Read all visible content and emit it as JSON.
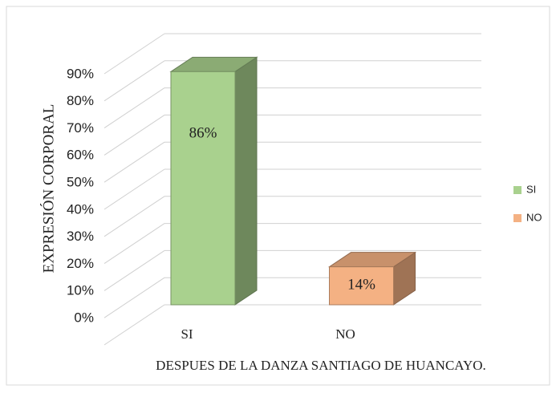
{
  "chart_data": {
    "type": "bar3d",
    "x_label": "DESPUES DE LA DANZA SANTIAGO DE HUANCAYO.",
    "y_label": "EXPRESIÓN CORPORAL",
    "categories": [
      "SI",
      "NO"
    ],
    "series": [
      {
        "name": "SI",
        "color": "#a9d18e",
        "values": [
          86,
          null
        ],
        "value_labels": [
          "86%",
          null
        ]
      },
      {
        "name": "NO",
        "color": "#f4b183",
        "values": [
          null,
          14
        ],
        "value_labels": [
          null,
          "14%"
        ]
      }
    ],
    "ylim": [
      0,
      100
    ],
    "yticks": [
      {
        "value": 0,
        "label": "0%"
      },
      {
        "value": 10,
        "label": "10%"
      },
      {
        "value": 20,
        "label": "20%"
      },
      {
        "value": 30,
        "label": "30%"
      },
      {
        "value": 40,
        "label": "40%"
      },
      {
        "value": 50,
        "label": "50%"
      },
      {
        "value": 60,
        "label": "60%"
      },
      {
        "value": 70,
        "label": "70%"
      },
      {
        "value": 80,
        "label": "80%"
      },
      {
        "value": 90,
        "label": "90%"
      }
    ],
    "grid": true,
    "legend": "right"
  }
}
